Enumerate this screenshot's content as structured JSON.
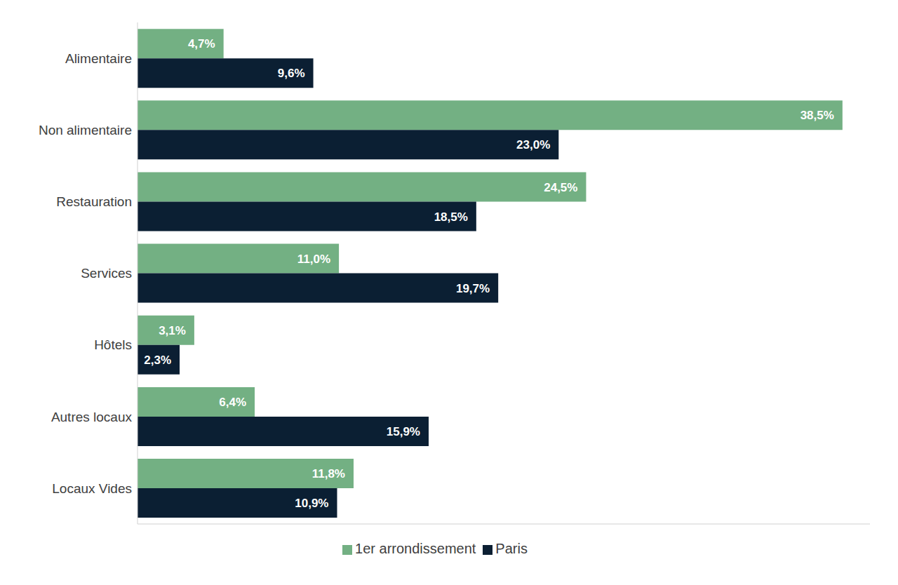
{
  "chart_data": {
    "type": "bar",
    "orientation": "horizontal",
    "categories": [
      "Alimentaire",
      "Non alimentaire",
      "Restauration",
      "Services",
      "Hôtels",
      "Autres locaux",
      "Locaux Vides"
    ],
    "series": [
      {
        "name": "1er arrondissement",
        "color": "#73b083",
        "values": [
          4.7,
          38.5,
          24.5,
          11.0,
          3.1,
          6.4,
          11.8
        ],
        "value_labels": [
          "4,7%",
          "38,5%",
          "24,5%",
          "11,0%",
          "3,1%",
          "6,4%",
          "11,8%"
        ]
      },
      {
        "name": "Paris",
        "color": "#0b1f33",
        "values": [
          9.6,
          23.0,
          18.5,
          19.7,
          2.3,
          15.9,
          10.9
        ],
        "value_labels": [
          "9,6%",
          "23,0%",
          "18,5%",
          "19,7%",
          "2,3%",
          "15,9%",
          "10,9%"
        ]
      }
    ],
    "xlim": [
      0,
      40
    ],
    "data_labels": true,
    "tick_labels": "y",
    "legend": "bottom"
  }
}
